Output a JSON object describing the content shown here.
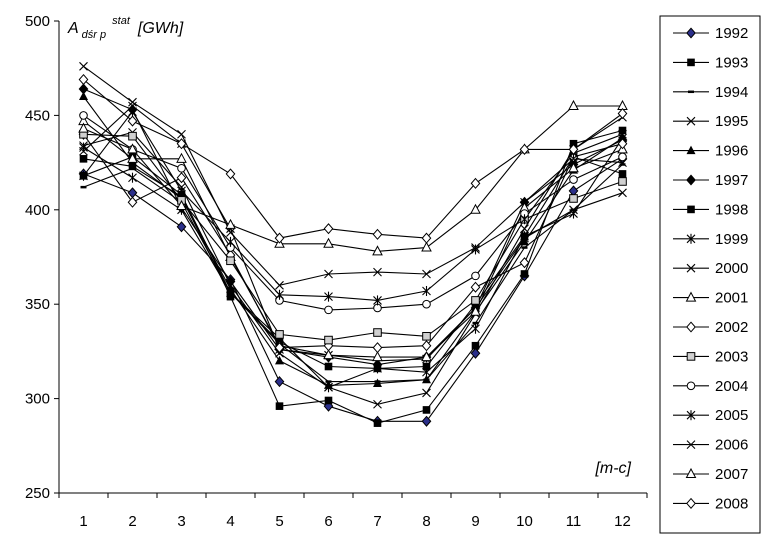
{
  "chart_data": {
    "type": "line",
    "x": [
      1,
      2,
      3,
      4,
      5,
      6,
      7,
      8,
      9,
      10,
      11,
      12
    ],
    "ylim": [
      250,
      500
    ],
    "yticks": [
      250,
      300,
      350,
      400,
      450,
      500
    ],
    "ylabel": {
      "main": "A",
      "sub": "dśr p",
      "sup": "stat",
      "unit": "[GWh]"
    },
    "xlabel": "[m-c]",
    "grid": false,
    "legend_position": "right",
    "series": [
      {
        "name": "1992",
        "marker": "diamond-filled-blue",
        "values": [
          419,
          409,
          391,
          363,
          309,
          296,
          288,
          288,
          324,
          365,
          410,
          427
        ]
      },
      {
        "name": "1993",
        "marker": "square-filled",
        "values": [
          427,
          423,
          407,
          354,
          296,
          299,
          287,
          294,
          328,
          366,
          435,
          442
        ]
      },
      {
        "name": "1994",
        "marker": "dash",
        "values": [
          412,
          422,
          404,
          356,
          329,
          309,
          309,
          310,
          340,
          380,
          400,
          424
        ]
      },
      {
        "name": "1995",
        "marker": "x",
        "values": [
          434,
          441,
          412,
          360,
          324,
          306,
          297,
          303,
          345,
          390,
          432,
          449
        ]
      },
      {
        "name": "1996",
        "marker": "triangle-filled",
        "values": [
          460,
          425,
          406,
          358,
          320,
          307,
          308,
          310,
          346,
          383,
          421,
          438
        ]
      },
      {
        "name": "1997",
        "marker": "diamond-filled",
        "values": [
          464,
          453,
          401,
          362,
          326,
          322,
          318,
          322,
          348,
          404,
          424,
          437
        ]
      },
      {
        "name": "1998",
        "marker": "square-filled",
        "values": [
          418,
          428,
          408,
          356,
          330,
          317,
          316,
          317,
          350,
          386,
          428,
          419
        ]
      },
      {
        "name": "1999",
        "marker": "asterisk",
        "values": [
          433,
          417,
          400,
          356,
          332,
          306,
          316,
          314,
          337,
          386,
          398,
          438
        ]
      },
      {
        "name": "2000",
        "marker": "x",
        "values": [
          431,
          455,
          435,
          390,
          326,
          323,
          320,
          321,
          348,
          385,
          400,
          409
        ]
      },
      {
        "name": "2001",
        "marker": "triangle-open",
        "values": [
          447,
          427,
          427,
          375,
          328,
          323,
          322,
          322,
          346,
          401,
          422,
          432
        ]
      },
      {
        "name": "2002",
        "marker": "diamond-open",
        "values": [
          440,
          404,
          417,
          376,
          327,
          328,
          327,
          328,
          359,
          372,
          428,
          435
        ]
      },
      {
        "name": "2003",
        "marker": "square-open",
        "values": [
          440,
          439,
          405,
          373,
          334,
          331,
          335,
          333,
          352,
          395,
          406,
          415
        ]
      },
      {
        "name": "2004",
        "marker": "circle-open",
        "values": [
          450,
          432,
          422,
          380,
          352,
          347,
          348,
          350,
          365,
          398,
          416,
          428
        ]
      },
      {
        "name": "2005",
        "marker": "asterisk",
        "values": [
          418,
          452,
          410,
          383,
          355,
          354,
          352,
          357,
          379,
          395,
          430,
          440
        ]
      },
      {
        "name": "2006",
        "marker": "x",
        "values": [
          476,
          457,
          440,
          388,
          360,
          366,
          367,
          366,
          380,
          404,
          427,
          425
        ]
      },
      {
        "name": "2007",
        "marker": "triangle-open",
        "values": [
          443,
          432,
          402,
          392,
          382,
          382,
          378,
          380,
          400,
          432,
          455,
          455
        ]
      },
      {
        "name": "2008",
        "marker": "diamond-open",
        "values": [
          469,
          447,
          435,
          419,
          385,
          390,
          387,
          385,
          414,
          432,
          432,
          451
        ]
      }
    ]
  }
}
